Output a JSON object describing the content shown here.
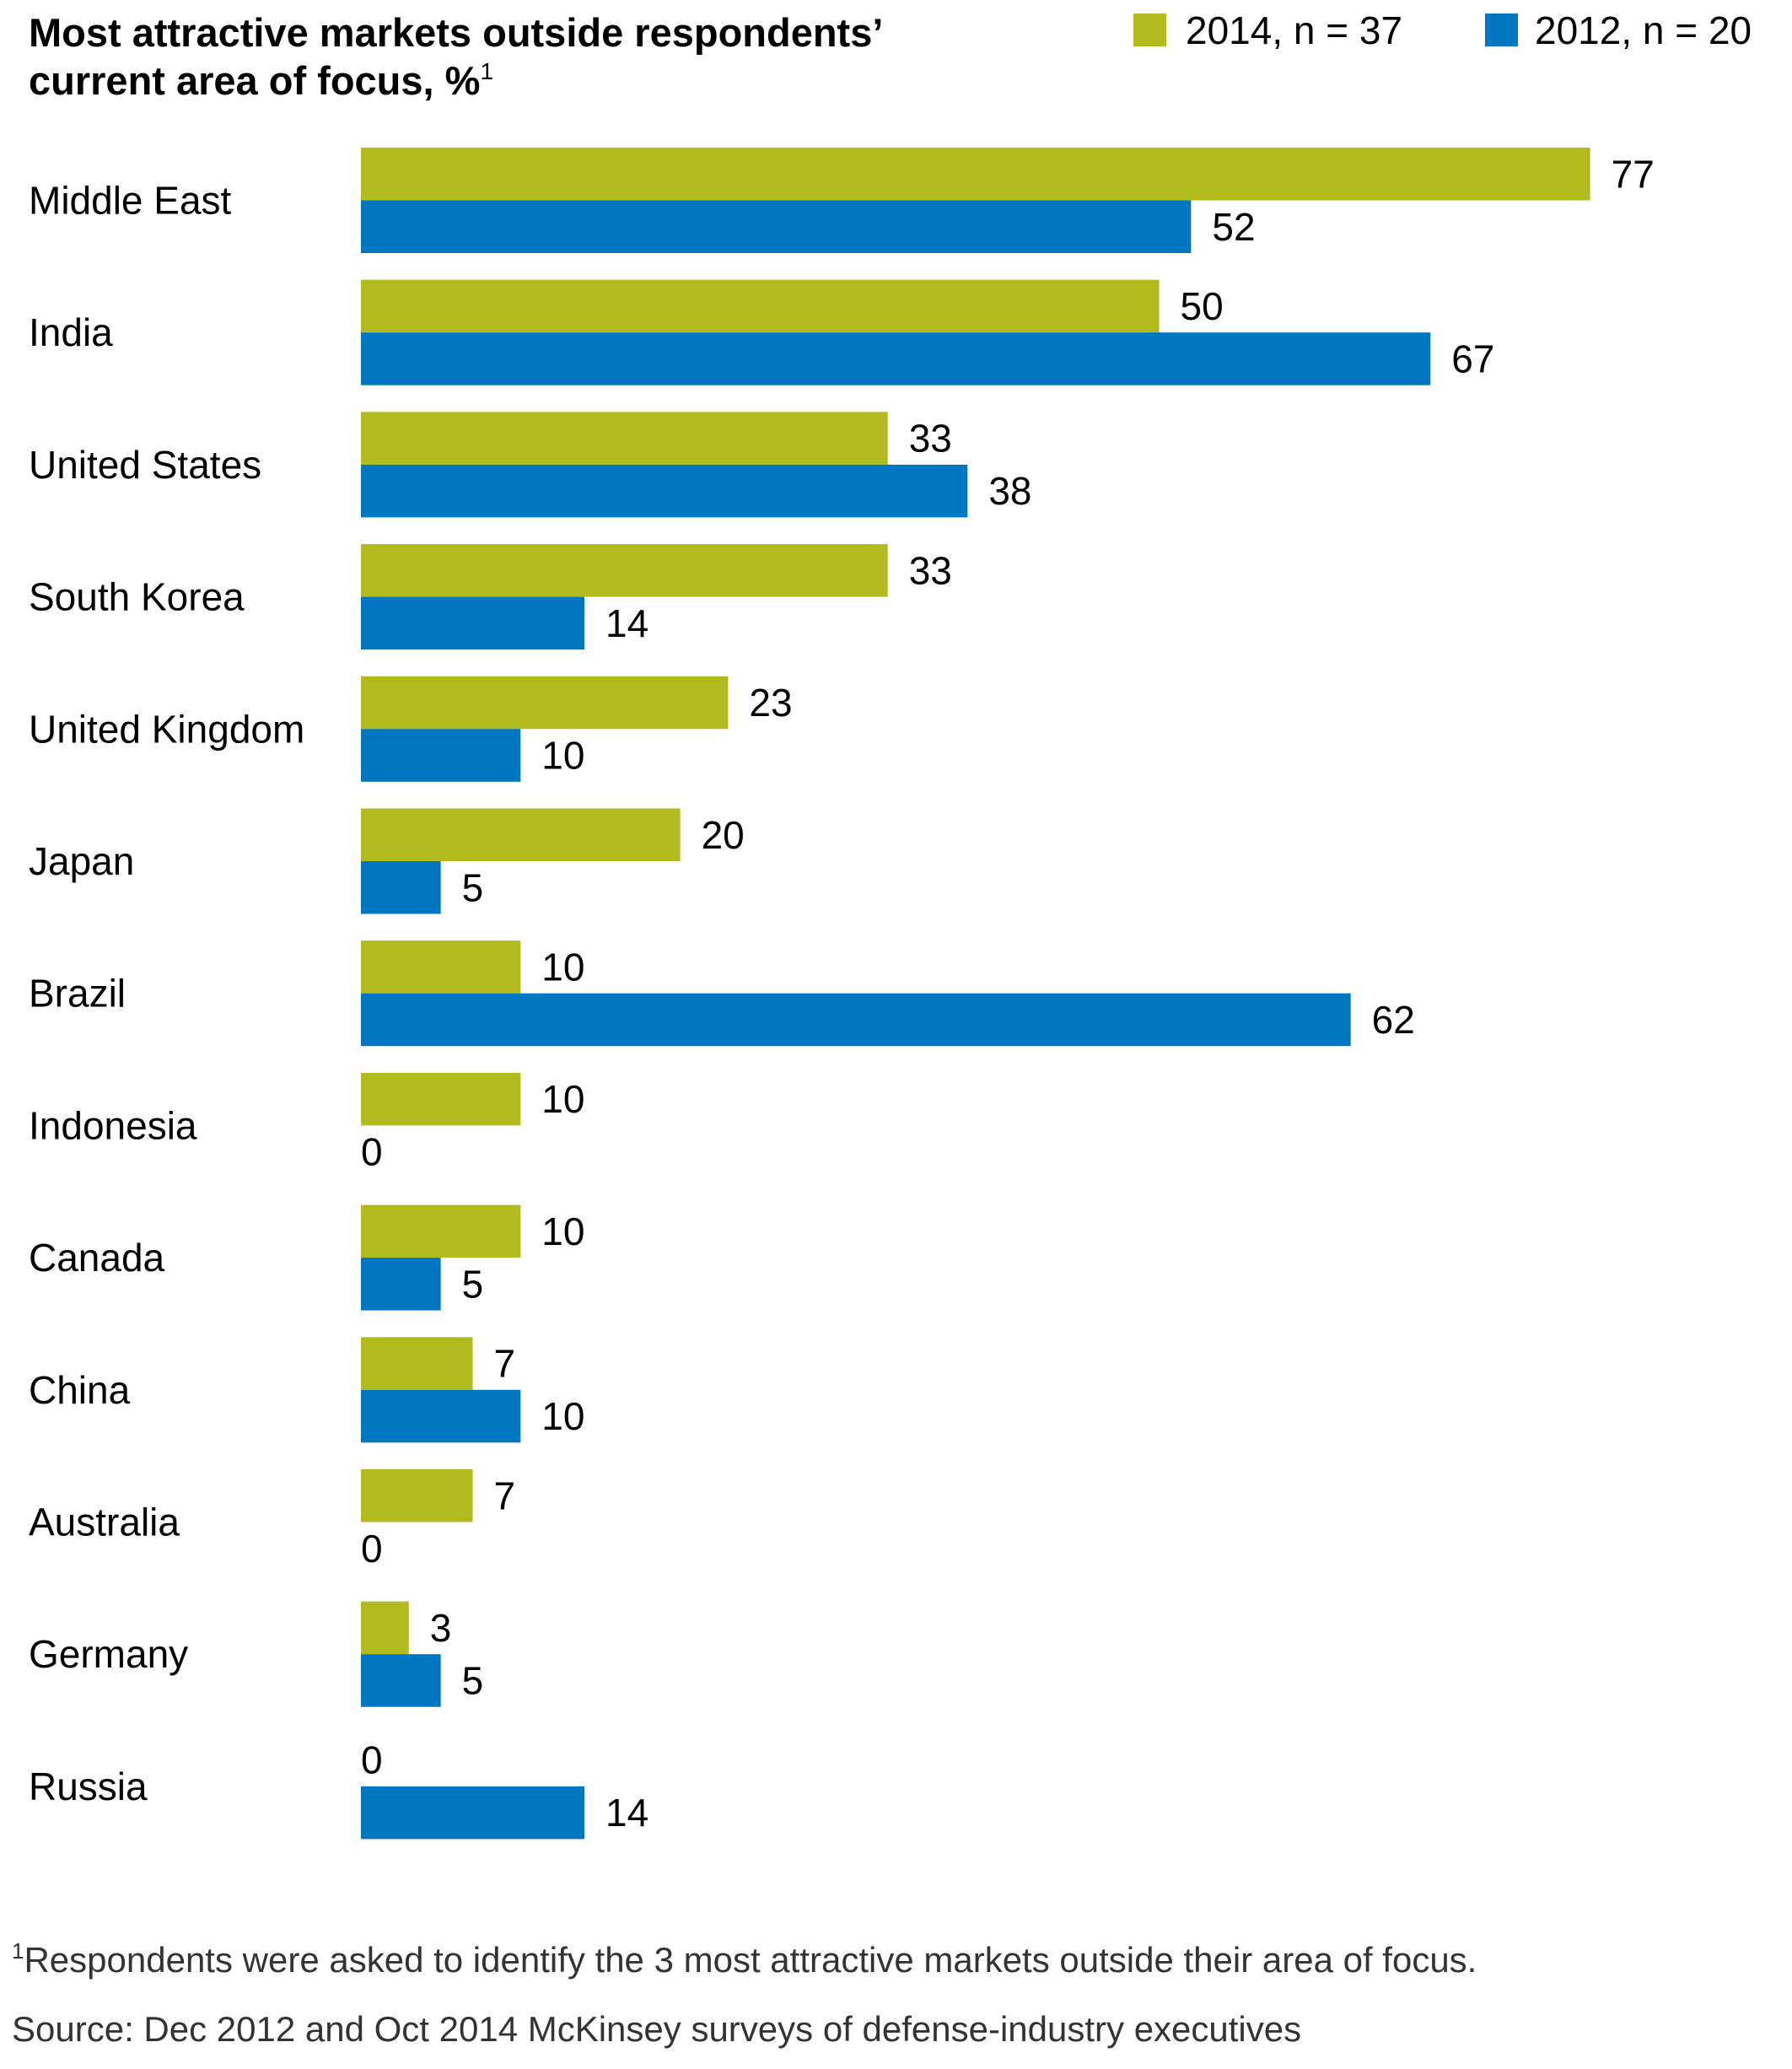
{
  "chart_data": {
    "type": "bar",
    "orientation": "horizontal",
    "title_line1": "Most attractive markets outside respondents’",
    "title_line2": "current area of focus, %",
    "title_superscript": "1",
    "categories": [
      "Middle East",
      "India",
      "United States",
      "South Korea",
      "United Kingdom",
      "Japan",
      "Brazil",
      "Indonesia",
      "Canada",
      "China",
      "Australia",
      "Germany",
      "Russia"
    ],
    "series": [
      {
        "name": "2014, n = 37",
        "color": "#b2bb1e",
        "values": [
          77,
          50,
          33,
          33,
          23,
          20,
          10,
          10,
          10,
          7,
          7,
          3,
          0
        ]
      },
      {
        "name": "2012, n = 20",
        "color": "#0077c0",
        "values": [
          52,
          67,
          38,
          14,
          10,
          5,
          62,
          0,
          5,
          10,
          0,
          5,
          14
        ]
      }
    ],
    "xlim": [
      0,
      77
    ],
    "grid": false,
    "legend_position": "top-right",
    "footnote_marker": "1",
    "footnote": "Respondents were asked to identify the 3 most attractive markets outside their area of focus.",
    "source": "Source: Dec 2012 and Oct 2014 McKinsey surveys of defense-industry executives"
  }
}
